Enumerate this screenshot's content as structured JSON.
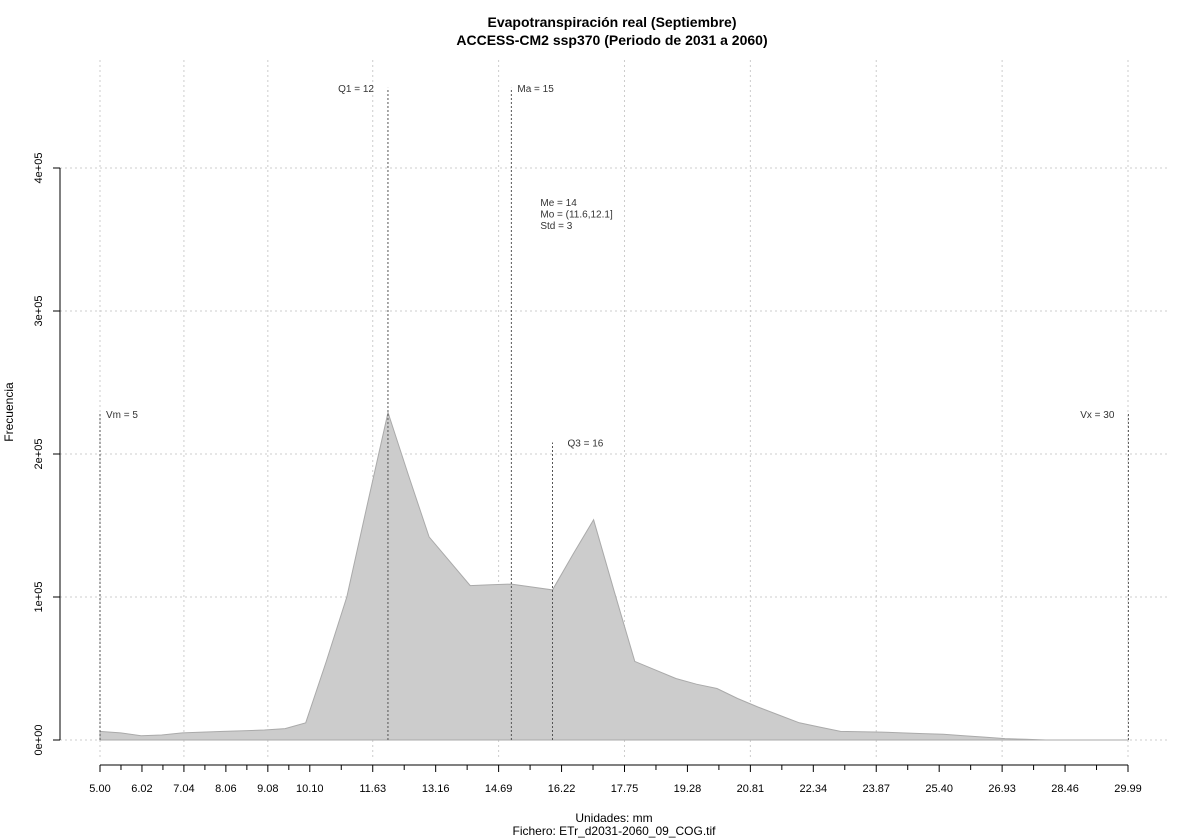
{
  "chart_data": {
    "type": "area",
    "title": "Evapotranspiración real (Septiembre)",
    "subtitle": "ACCESS-CM2 ssp370 (Periodo de 2031 a 2060)",
    "xlabel": "Unidades: mm",
    "ylabel": "Frecuencia",
    "footer": "Fichero: ETr_d2031-2060_09_COG.tif",
    "xlim": [
      5.0,
      29.99
    ],
    "ylim": [
      0,
      400000
    ],
    "grid": true,
    "x_ticks": [
      5.0,
      6.02,
      7.04,
      8.06,
      9.08,
      10.1,
      11.63,
      13.16,
      14.69,
      16.22,
      17.75,
      19.28,
      20.81,
      22.34,
      23.87,
      25.4,
      26.93,
      28.46,
      29.99
    ],
    "x_tick_labels": [
      "5.00",
      "6.02",
      "7.04",
      "8.06",
      "9.08",
      "10.10",
      "11.63",
      "13.16",
      "14.69",
      "16.22",
      "17.75",
      "19.28",
      "20.81",
      "22.34",
      "23.87",
      "25.40",
      "26.93",
      "28.46",
      "29.99"
    ],
    "y_ticks": [
      0,
      100000,
      200000,
      300000,
      400000
    ],
    "y_tick_labels": [
      "0e+00",
      "1e+05",
      "2e+05",
      "3e+05",
      "4e+05"
    ],
    "series": [
      {
        "x": [
          5.0,
          5.5,
          6.0,
          6.5,
          7.0,
          7.5,
          8.0,
          8.5,
          9.0,
          9.5,
          10.0,
          10.5,
          11.0,
          11.5,
          12.0,
          12.5,
          13.0,
          13.5,
          14.0,
          14.5,
          15.0,
          15.5,
          16.0,
          16.5,
          17.0,
          17.5,
          18.0,
          18.5,
          19.0,
          19.5,
          20.0,
          20.5,
          21.0,
          21.5,
          22.0,
          22.5,
          23.0,
          23.5,
          24.0,
          24.5,
          25.0,
          25.5,
          26.0,
          26.5,
          27.0,
          27.5,
          28.0,
          28.5,
          29.0,
          29.5,
          30.0
        ],
        "values": [
          6000,
          5000,
          3000,
          3500,
          5000,
          5500,
          6000,
          6500,
          7000,
          8000,
          12000,
          55000,
          100000,
          165000,
          229000,
          185000,
          142000,
          125000,
          108000,
          108500,
          109000,
          107000,
          105000,
          130000,
          154000,
          104000,
          55000,
          49000,
          43000,
          39000,
          36000,
          29000,
          23000,
          17500,
          12000,
          9000,
          6000,
          5700,
          5500,
          5000,
          4500,
          4000,
          3000,
          2000,
          1000,
          500,
          0,
          0,
          0,
          0,
          0
        ]
      }
    ],
    "annotations": [
      {
        "name": "Vm",
        "label": "Vm = 5",
        "x": 5,
        "y_top": 228000
      },
      {
        "name": "Q1",
        "label": "Q1 = 12",
        "x": 12,
        "y_top": 456000
      },
      {
        "name": "Ma",
        "label": "Ma = 15",
        "x": 15,
        "y_top": 456000
      },
      {
        "name": "Q3",
        "label": "Q3 = 16",
        "x": 16,
        "y_top": 208000
      },
      {
        "name": "Vx",
        "label": "Vx = 30",
        "x": 30,
        "y_top": 228000
      }
    ],
    "stats": [
      "Me = 14",
      "Mo = (11.6,12.1]",
      "Std = 3"
    ]
  }
}
